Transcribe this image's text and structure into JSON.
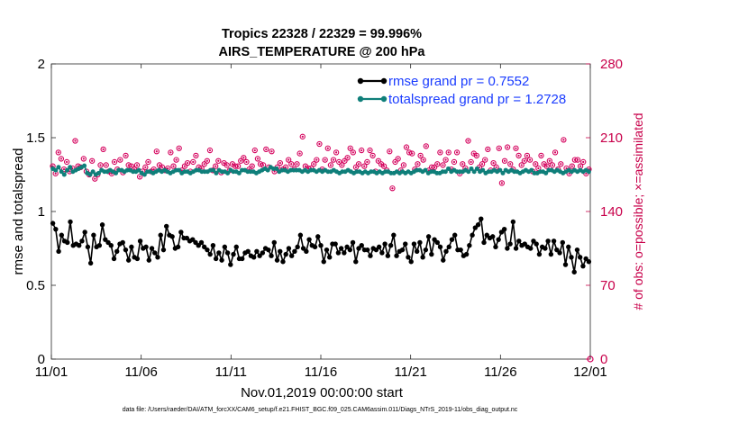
{
  "chart_data": {
    "type": "line",
    "title": "Tropics 22328 / 22329 = 99.996%",
    "subtitle": "AIRS_TEMPERATURE @ 200 hPa",
    "xlabel": "Nov.01,2019 00:00:00 start",
    "ylabel": "rmse and totalspread",
    "ylabel_right": "# of obs: o=possible; ×=assimilated",
    "footnote": "data file: /Users/raeder/DAI/ATM_forcXX/CAM6_setup/f.e21.FHIST_BGC.f09_025.CAM6assim.011/Diags_NTrS_2019-11/obs_diag_output.nc",
    "xlim": [
      0,
      30
    ],
    "ylim": [
      0,
      2
    ],
    "ylim_right": [
      0,
      280
    ],
    "x_ticks": [
      0,
      5,
      10,
      15,
      20,
      25,
      30
    ],
    "x_tick_labels": [
      "11/01",
      "11/06",
      "11/11",
      "11/16",
      "11/21",
      "11/26",
      "12/01"
    ],
    "y_ticks": [
      0,
      0.5,
      1,
      1.5,
      2
    ],
    "y_tick_labels": [
      "0",
      "0.5",
      "1",
      "1.5",
      "2"
    ],
    "y_ticks_right": [
      0,
      70,
      140,
      210,
      280
    ],
    "y_tick_labels_right": [
      "0",
      "70",
      "140",
      "210",
      "280"
    ],
    "grid": false,
    "legend_position": "top-right",
    "series": [
      {
        "name": "rmse grand pr = 0.7552",
        "color": "#000000",
        "axis": "left",
        "values": [
          0.92,
          0.88,
          0.73,
          0.84,
          0.8,
          0.79,
          0.93,
          0.77,
          0.78,
          0.77,
          0.8,
          0.86,
          0.76,
          0.65,
          0.84,
          0.76,
          0.77,
          0.91,
          0.81,
          0.79,
          0.77,
          0.68,
          0.73,
          0.78,
          0.79,
          0.74,
          0.67,
          0.76,
          0.69,
          0.68,
          0.8,
          0.75,
          0.76,
          0.67,
          0.75,
          0.72,
          0.69,
          0.84,
          0.74,
          0.9,
          0.84,
          0.83,
          0.75,
          0.76,
          0.86,
          0.82,
          0.82,
          0.8,
          0.81,
          0.79,
          0.77,
          0.79,
          0.76,
          0.74,
          0.71,
          0.77,
          0.68,
          0.72,
          0.67,
          0.76,
          0.72,
          0.64,
          0.71,
          0.76,
          0.68,
          0.68,
          0.72,
          0.73,
          0.7,
          0.69,
          0.73,
          0.7,
          0.72,
          0.75,
          0.74,
          0.7,
          0.79,
          0.67,
          0.73,
          0.66,
          0.71,
          0.75,
          0.7,
          0.73,
          0.76,
          0.84,
          0.75,
          0.73,
          0.81,
          0.77,
          0.76,
          0.83,
          0.77,
          0.66,
          0.74,
          0.69,
          0.78,
          0.78,
          0.72,
          0.75,
          0.72,
          0.76,
          0.74,
          0.79,
          0.66,
          0.75,
          0.77,
          0.74,
          0.74,
          0.7,
          0.75,
          0.74,
          0.76,
          0.72,
          0.78,
          0.7,
          0.77,
          0.84,
          0.7,
          0.73,
          0.74,
          0.78,
          0.69,
          0.66,
          0.78,
          0.73,
          0.79,
          0.69,
          0.74,
          0.83,
          0.71,
          0.81,
          0.79,
          0.76,
          0.67,
          0.73,
          0.76,
          0.81,
          0.84,
          0.74,
          0.74,
          0.7,
          0.71,
          0.77,
          0.84,
          0.89,
          0.91,
          0.95,
          0.79,
          0.84,
          0.82,
          0.83,
          0.76,
          0.81,
          0.86,
          0.88,
          0.75,
          0.78,
          0.93,
          0.75,
          0.8,
          0.77,
          0.78,
          0.76,
          0.75,
          0.8,
          0.78,
          0.71,
          0.76,
          0.75,
          0.8,
          0.71,
          0.8,
          0.74,
          0.72,
          0.79,
          0.64,
          0.76,
          0.69,
          0.59,
          0.74,
          0.69,
          0.63,
          0.68,
          0.66
        ]
      },
      {
        "name": "totalspread grand pr = 1.2728",
        "color": "#0f7f7a",
        "axis": "left",
        "values": [
          1.29,
          1.28,
          1.3,
          1.27,
          1.25,
          1.28,
          1.3,
          1.27,
          1.28,
          1.29,
          1.3,
          1.31,
          1.26,
          1.25,
          1.27,
          1.25,
          1.26,
          1.28,
          1.27,
          1.27,
          1.28,
          1.27,
          1.26,
          1.28,
          1.28,
          1.27,
          1.28,
          1.28,
          1.27,
          1.27,
          1.28,
          1.26,
          1.25,
          1.27,
          1.27,
          1.26,
          1.27,
          1.28,
          1.27,
          1.28,
          1.27,
          1.26,
          1.27,
          1.28,
          1.28,
          1.26,
          1.27,
          1.27,
          1.26,
          1.27,
          1.28,
          1.28,
          1.27,
          1.27,
          1.27,
          1.28,
          1.28,
          1.26,
          1.28,
          1.27,
          1.27,
          1.26,
          1.28,
          1.27,
          1.27,
          1.26,
          1.28,
          1.28,
          1.27,
          1.27,
          1.27,
          1.26,
          1.27,
          1.28,
          1.29,
          1.28,
          1.3,
          1.29,
          1.29,
          1.27,
          1.28,
          1.28,
          1.27,
          1.28,
          1.28,
          1.28,
          1.28,
          1.27,
          1.28,
          1.27,
          1.28,
          1.28,
          1.27,
          1.28,
          1.27,
          1.28,
          1.27,
          1.27,
          1.28,
          1.27,
          1.26,
          1.27,
          1.27,
          1.28,
          1.27,
          1.26,
          1.27,
          1.27,
          1.26,
          1.27,
          1.26,
          1.27,
          1.27,
          1.26,
          1.27,
          1.26,
          1.27,
          1.27,
          1.26,
          1.26,
          1.27,
          1.26,
          1.27,
          1.26,
          1.27,
          1.26,
          1.27,
          1.28,
          1.28,
          1.27,
          1.28,
          1.26,
          1.27,
          1.27,
          1.26,
          1.26,
          1.27,
          1.27,
          1.29,
          1.27,
          1.28,
          1.27,
          1.27,
          1.27,
          1.28,
          1.27,
          1.29,
          1.27,
          1.29,
          1.27,
          1.28,
          1.26,
          1.27,
          1.27,
          1.28,
          1.27,
          1.28,
          1.26,
          1.28,
          1.27,
          1.28,
          1.27,
          1.27,
          1.26,
          1.27,
          1.28,
          1.27,
          1.28,
          1.26,
          1.26,
          1.27,
          1.27,
          1.26,
          1.28,
          1.28,
          1.27,
          1.28,
          1.27,
          1.26,
          1.27,
          1.28,
          1.27,
          1.28,
          1.27,
          1.28,
          1.27,
          1.28,
          1.27
        ]
      },
      {
        "name": "obs possible / assimilated",
        "color": "#d4005c",
        "axis": "right",
        "values": [
          183,
          176,
          196,
          190,
          180,
          187,
          178,
          181,
          207,
          183,
          182,
          190,
          178,
          175,
          188,
          171,
          175,
          184,
          199,
          184,
          178,
          176,
          187,
          180,
          189,
          177,
          193,
          184,
          183,
          180,
          184,
          173,
          178,
          182,
          187,
          178,
          180,
          197,
          184,
          182,
          179,
          181,
          196,
          183,
          189,
          200,
          179,
          183,
          186,
          178,
          187,
          193,
          182,
          181,
          185,
          188,
          198,
          179,
          183,
          188,
          177,
          186,
          184,
          179,
          185,
          183,
          183,
          188,
          191,
          187,
          180,
          183,
          198,
          190,
          185,
          184,
          199,
          182,
          197,
          178,
          182,
          186,
          180,
          182,
          189,
          185,
          180,
          185,
          195,
          211,
          183,
          181,
          181,
          185,
          189,
          204,
          180,
          189,
          200,
          184,
          189,
          196,
          187,
          184,
          188,
          191,
          200,
          196,
          182,
          185,
          198,
          183,
          187,
          198,
          193,
          178,
          188,
          185,
          183,
          179,
          197,
          162,
          187,
          190,
          179,
          184,
          201,
          196,
          195,
          180,
          185,
          193,
          189,
          202,
          179,
          182,
          182,
          185,
          196,
          184,
          189,
          196,
          180,
          187,
          196,
          176,
          185,
          181,
          207,
          187,
          195,
          193,
          182,
          185,
          189,
          199,
          179,
          186,
          182,
          200,
          167,
          188,
          201,
          185,
          180,
          200,
          193,
          184,
          188,
          193,
          189,
          178,
          185,
          181,
          193,
          185,
          183,
          188,
          184,
          196,
          180,
          185,
          208,
          181,
          176,
          183,
          189,
          189,
          183,
          187,
          176,
          180
        ]
      }
    ]
  }
}
